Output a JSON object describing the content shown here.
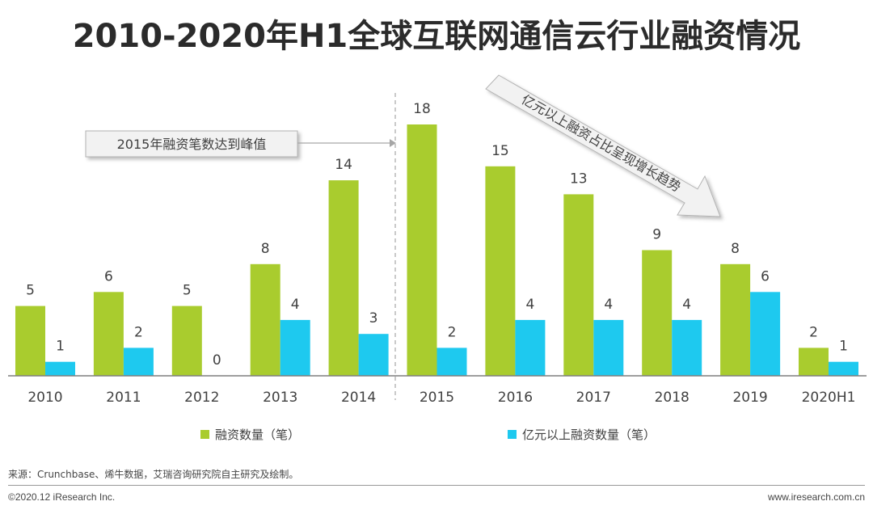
{
  "page": {
    "title": "2010-2020年H1全球互联网通信云行业融资情况",
    "source": "来源：Crunchbase、烯牛数据，艾瑞咨询研究院自主研究及绘制。",
    "copyright": "©2020.12 iResearch Inc.",
    "website": "www.iresearch.com.cn"
  },
  "colors": {
    "series1": "#a9cc2e",
    "series2": "#1ec9ef",
    "callout_bg": "#f2f2f2",
    "callout_border": "#b3b3b3"
  },
  "chart_data": {
    "type": "bar",
    "title": "2010-2020年H1全球互联网通信云行业融资情况",
    "categories": [
      "2010",
      "2011",
      "2012",
      "2013",
      "2014",
      "2015",
      "2016",
      "2017",
      "2018",
      "2019",
      "2020H1"
    ],
    "series": [
      {
        "name": "融资数量（笔）",
        "values": [
          5,
          6,
          5,
          8,
          14,
          18,
          15,
          13,
          9,
          8,
          2
        ]
      },
      {
        "name": "亿元以上融资数量（笔）",
        "values": [
          1,
          2,
          0,
          4,
          3,
          2,
          4,
          4,
          4,
          6,
          1
        ]
      }
    ],
    "ylim": [
      0,
      19
    ],
    "xlabel": "",
    "ylabel": "",
    "legend_position": "bottom",
    "data_labels": true,
    "annotations": {
      "peak_note": "2015年融资笔数达到峰值",
      "trend_note": "亿元以上融资占比呈现增长趋势"
    }
  }
}
